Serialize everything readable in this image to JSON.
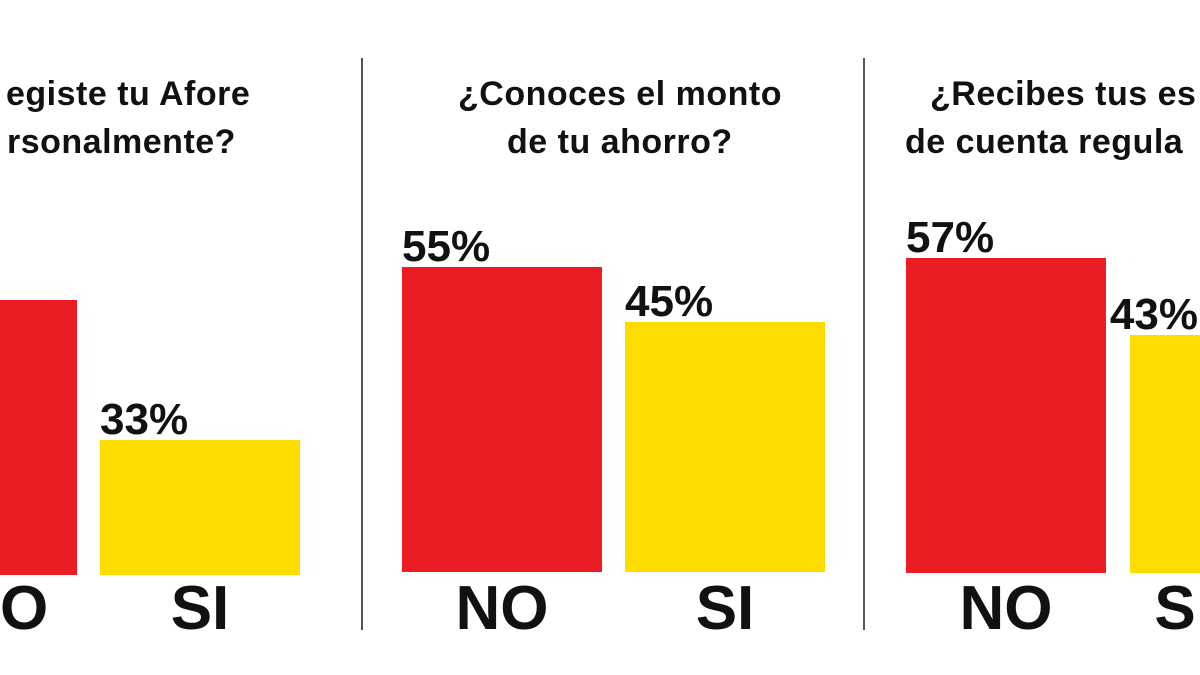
{
  "colors": {
    "no": "#ec1c24",
    "si": "#ffdc00"
  },
  "chart_data": [
    {
      "type": "bar",
      "title_lines": [
        "egiste tu Afore",
        "rsonalmente?"
      ],
      "categories": [
        "O",
        "SI"
      ],
      "values": [
        67,
        33
      ],
      "labels": [
        "",
        "33%"
      ],
      "ylim": [
        0,
        100
      ]
    },
    {
      "type": "bar",
      "title_lines": [
        "¿Conoces el monto",
        "de tu ahorro?"
      ],
      "categories": [
        "NO",
        "SI"
      ],
      "values": [
        55,
        45
      ],
      "labels": [
        "55%",
        "45%"
      ],
      "ylim": [
        0,
        100
      ]
    },
    {
      "type": "bar",
      "title_lines": [
        "¿Recibes tus es",
        "de cuenta regula"
      ],
      "categories": [
        "NO",
        "S"
      ],
      "values": [
        57,
        43
      ],
      "labels": [
        "57%",
        "43%"
      ],
      "ylim": [
        0,
        100
      ]
    }
  ]
}
